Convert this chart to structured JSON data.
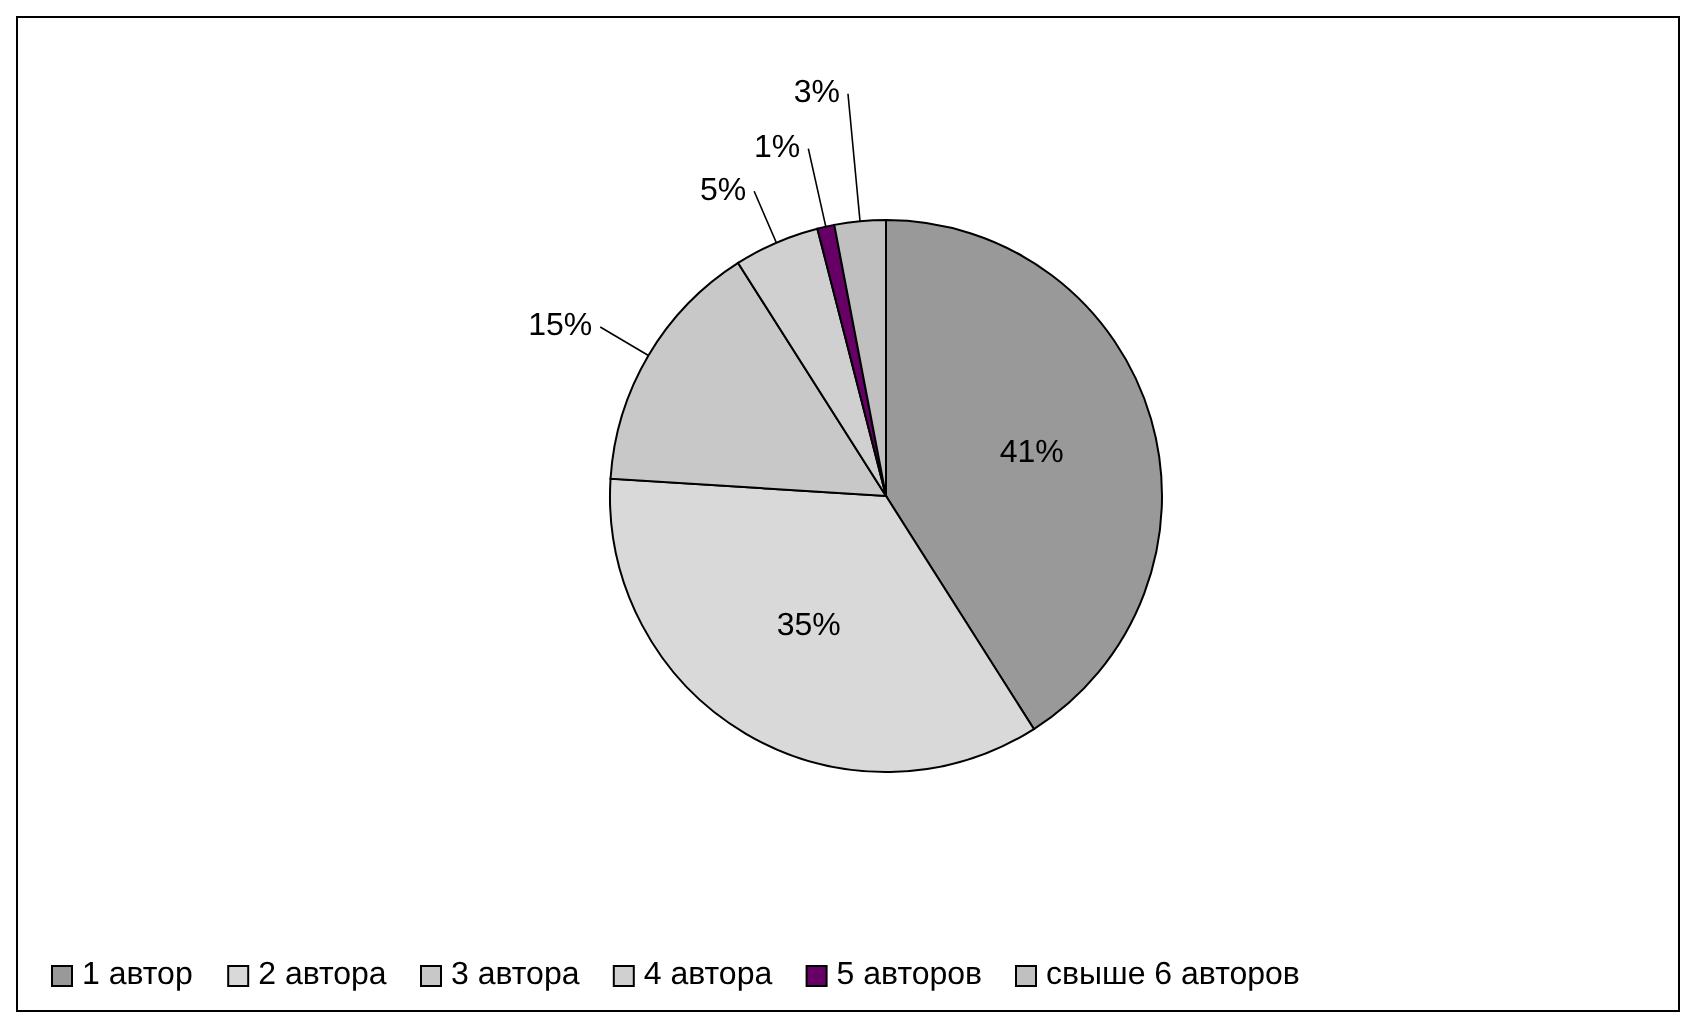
{
  "chart_data": {
    "type": "pie",
    "categories": [
      "1 автор",
      "2 автора",
      "3 автора",
      "4 автора",
      "5 авторов",
      "свыше 6 авторов"
    ],
    "values": [
      41,
      35,
      15,
      5,
      1,
      3
    ],
    "colors": [
      "#999999",
      "#d9d9d9",
      "#c8c8c8",
      "#d0d0d0",
      "#660066",
      "#c0c0c0"
    ],
    "value_labels": [
      "41%",
      "35%",
      "15%",
      "5%",
      "1%",
      "3%"
    ],
    "legend": "bottom"
  }
}
